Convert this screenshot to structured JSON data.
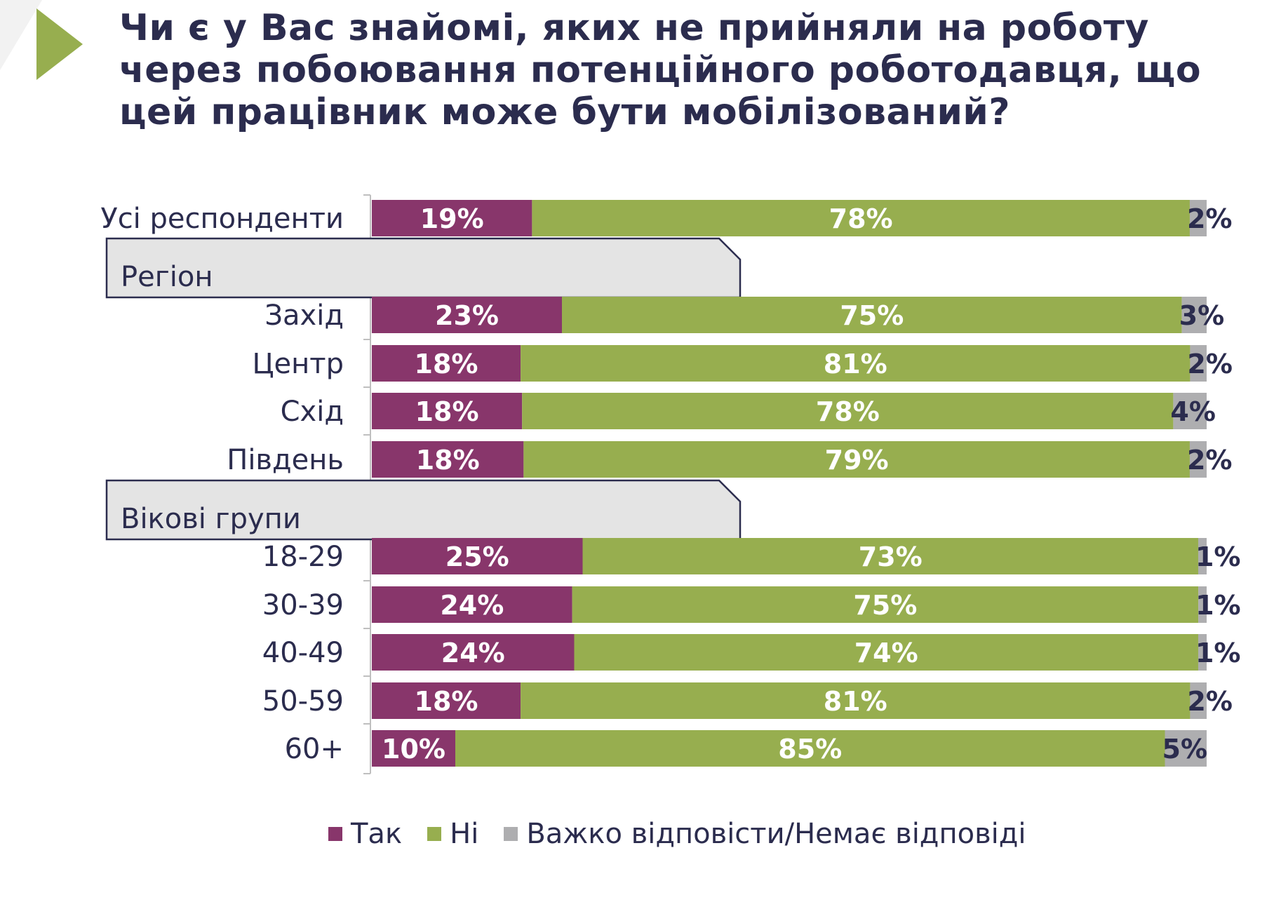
{
  "title": "Чи є у Вас знайомі, яких не прийняли на роботу через побоювання потенційного роботодавця, що цей працівник може бути мобілізований?",
  "colors": {
    "yes": "#88366b",
    "no": "#97ae4f",
    "unsure": "#aeaeb0",
    "text": "#2b2c4e",
    "section_fill": "#e4e4e4"
  },
  "sections": [
    "Регіон",
    "Вікові групи"
  ],
  "legend": [
    {
      "label": "Так",
      "color": "#88366b"
    },
    {
      "label": "Ні",
      "color": "#97ae4f"
    },
    {
      "label": "Важко відповісти/Немає відповіді",
      "color": "#aeaeb0"
    }
  ],
  "chart_data": {
    "type": "bar",
    "orientation": "horizontal",
    "stacked": true,
    "title": "Чи є у Вас знайомі, яких не прийняли на роботу через побоювання потенційного роботодавця, що цей працівник може бути мобілізований?",
    "categories": [
      "Усі респонденти",
      "Захід",
      "Центр",
      "Схід",
      "Південь",
      "18-29",
      "30-39",
      "40-49",
      "50-59",
      "60+"
    ],
    "series": [
      {
        "name": "Так",
        "values": [
          19,
          23,
          18,
          18,
          18,
          25,
          24,
          24,
          18,
          10
        ],
        "labels": [
          "19%",
          "23%",
          "18%",
          "18%",
          "18%",
          "25%",
          "24%",
          "24%",
          "18%",
          "10%"
        ]
      },
      {
        "name": "Ні",
        "values": [
          78,
          75,
          81,
          78,
          79,
          73,
          75,
          74,
          81,
          85
        ],
        "labels": [
          "78%",
          "75%",
          "81%",
          "78%",
          "79%",
          "73%",
          "75%",
          "74%",
          "81%",
          "85%"
        ]
      },
      {
        "name": "Важко відповісти/Немає відповіді",
        "values": [
          2,
          3,
          2,
          4,
          2,
          1,
          1,
          1,
          2,
          5
        ],
        "labels": [
          "2%",
          "3%",
          "2%",
          "4%",
          "2%",
          "1%",
          "1%",
          "1%",
          "2%",
          "5%"
        ]
      }
    ],
    "groups": [
      {
        "name": "Регіон",
        "categories": [
          "Захід",
          "Центр",
          "Схід",
          "Південь"
        ]
      },
      {
        "name": "Вікові групи",
        "categories": [
          "18-29",
          "30-39",
          "40-49",
          "50-59",
          "60+"
        ]
      }
    ],
    "legend_position": "bottom"
  }
}
